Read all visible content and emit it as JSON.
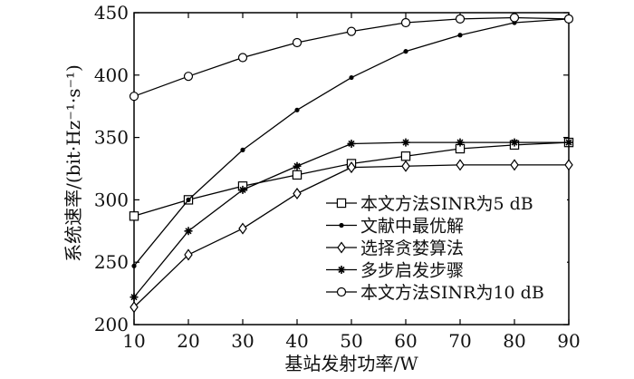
{
  "chart_data": {
    "type": "line",
    "title": "",
    "xlabel": "基站发射功率/W",
    "ylabel": "系统速率/(bit·Hz⁻¹·s⁻¹)",
    "x": [
      10,
      20,
      30,
      40,
      50,
      60,
      70,
      80,
      90
    ],
    "xlim": [
      10,
      90
    ],
    "ylim": [
      200,
      450
    ],
    "xticks": [
      10,
      20,
      30,
      40,
      50,
      60,
      70,
      80,
      90
    ],
    "yticks": [
      200,
      250,
      300,
      350,
      400,
      450
    ],
    "grid": false,
    "legend_position": "bottom-right",
    "series": [
      {
        "name": "本文方法SINR为5 dB",
        "marker": "square",
        "values": [
          287,
          300,
          311,
          320,
          329,
          335,
          341,
          344,
          346
        ]
      },
      {
        "name": "文献中最优解",
        "marker": "dot",
        "values": [
          247,
          300,
          340,
          372,
          398,
          419,
          432,
          442,
          445
        ]
      },
      {
        "name": "选择贪婪算法",
        "marker": "diamond",
        "values": [
          214,
          256,
          277,
          305,
          326,
          327,
          328,
          328,
          328
        ]
      },
      {
        "name": "多步启发步骤",
        "marker": "star",
        "values": [
          222,
          275,
          308,
          327,
          345,
          346,
          346,
          346,
          346
        ]
      },
      {
        "name": "本文方法SINR为10 dB",
        "marker": "circle",
        "values": [
          383,
          399,
          414,
          426,
          435,
          442,
          445,
          446,
          445
        ]
      }
    ]
  }
}
